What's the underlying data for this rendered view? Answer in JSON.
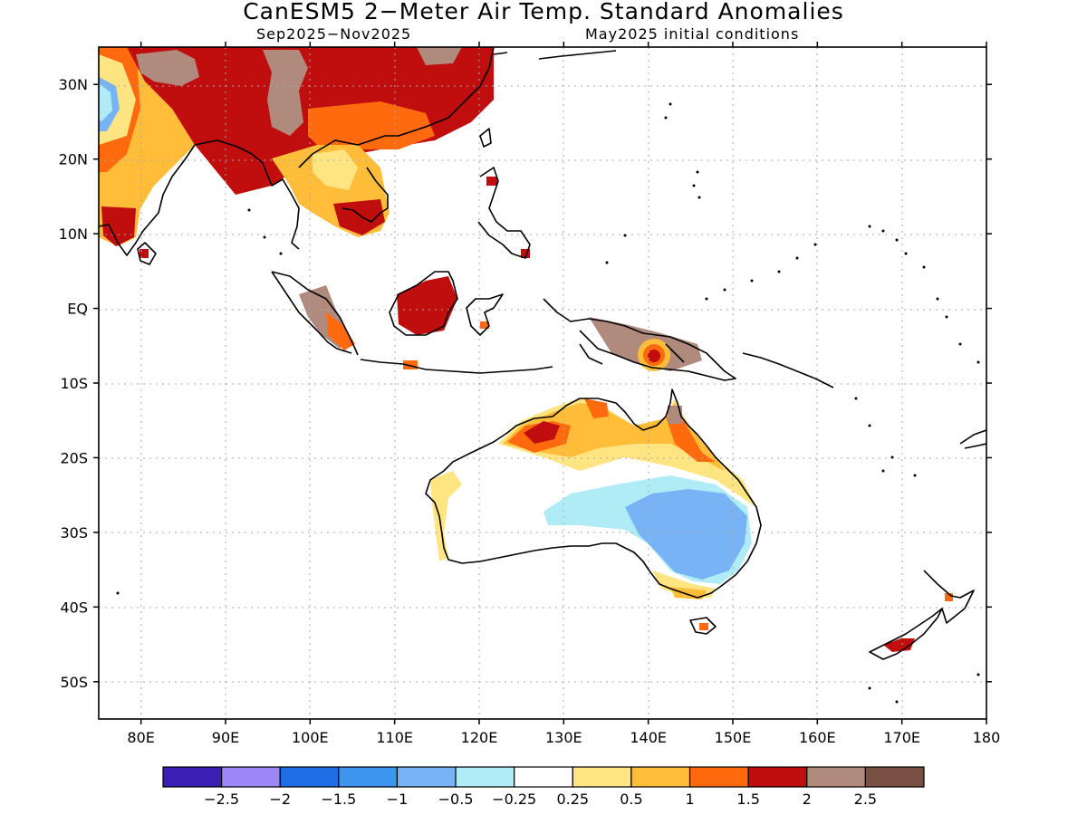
{
  "title": "CanESM5 2−Meter Air Temp. Standard Anomalies",
  "subtitle_left": "Sep2025−Nov2025",
  "subtitle_right": "May2025 initial conditions",
  "map": {
    "lon_range": [
      75,
      180
    ],
    "lat_range": [
      -55,
      35
    ],
    "x_ticks": [
      "80E",
      "90E",
      "100E",
      "110E",
      "120E",
      "130E",
      "140E",
      "150E",
      "160E",
      "170E",
      "180"
    ],
    "y_ticks": [
      "30N",
      "20N",
      "10N",
      "EQ",
      "10S",
      "20S",
      "30S",
      "40S",
      "50S"
    ]
  },
  "colorbar": {
    "colors": [
      "#3b1fb5",
      "#9b87f5",
      "#1f6ee6",
      "#3d95f0",
      "#78b4f5",
      "#b0ecf6",
      "#ffffff",
      "#ffe482",
      "#ffbd3a",
      "#ff6a0f",
      "#c00d0d",
      "#b18a7e",
      "#7a4f44"
    ],
    "labels": [
      "−2.5",
      "−2",
      "−1.5",
      "−1",
      "−0.5",
      "−0.25",
      "0.25",
      "0.5",
      "1",
      "1.5",
      "2",
      "2.5"
    ]
  }
}
